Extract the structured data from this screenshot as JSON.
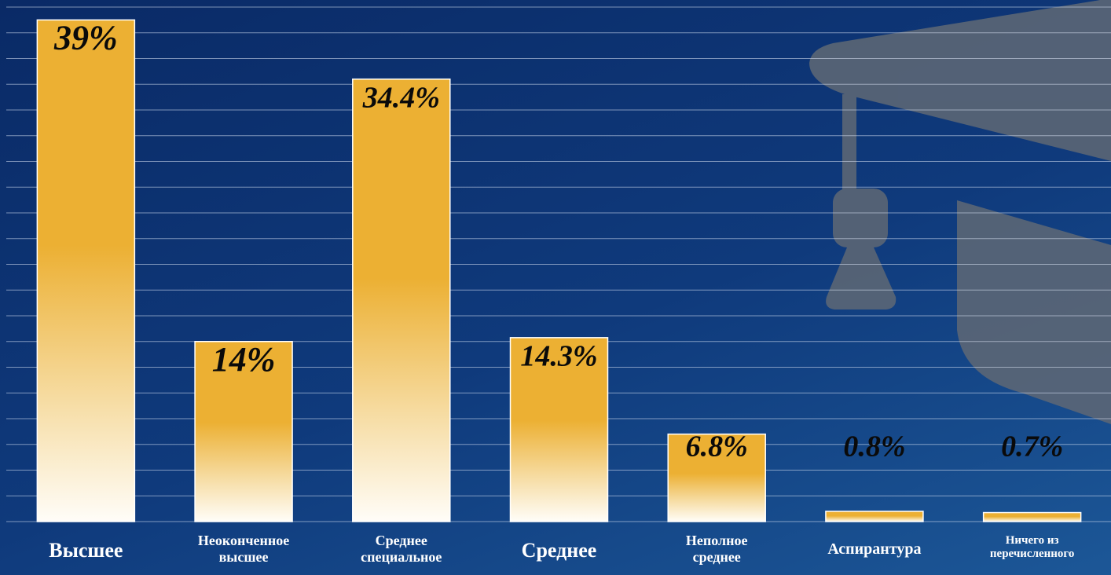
{
  "chart_data": {
    "type": "bar",
    "categories": [
      "Высшее",
      "Неоконченное\nвысшее",
      "Среднее\nспециальное",
      "Среднее",
      "Неполное\nсреднее",
      "Аспирантура",
      "Ничего из\nперечисленного"
    ],
    "values": [
      39,
      14,
      34.4,
      14.3,
      6.8,
      0.8,
      0.7
    ],
    "value_labels": [
      "39%",
      "14%",
      "34.4%",
      "14.3%",
      "6.8%",
      "0.8%",
      "0.7%"
    ],
    "color": "#ecb033",
    "ylim": [
      0,
      40
    ],
    "yticks": [
      0,
      2,
      4,
      6,
      8,
      10,
      12,
      14,
      16,
      18,
      20,
      22,
      24,
      26,
      28,
      30,
      32,
      34,
      36,
      38,
      40
    ],
    "grid": true
  }
}
